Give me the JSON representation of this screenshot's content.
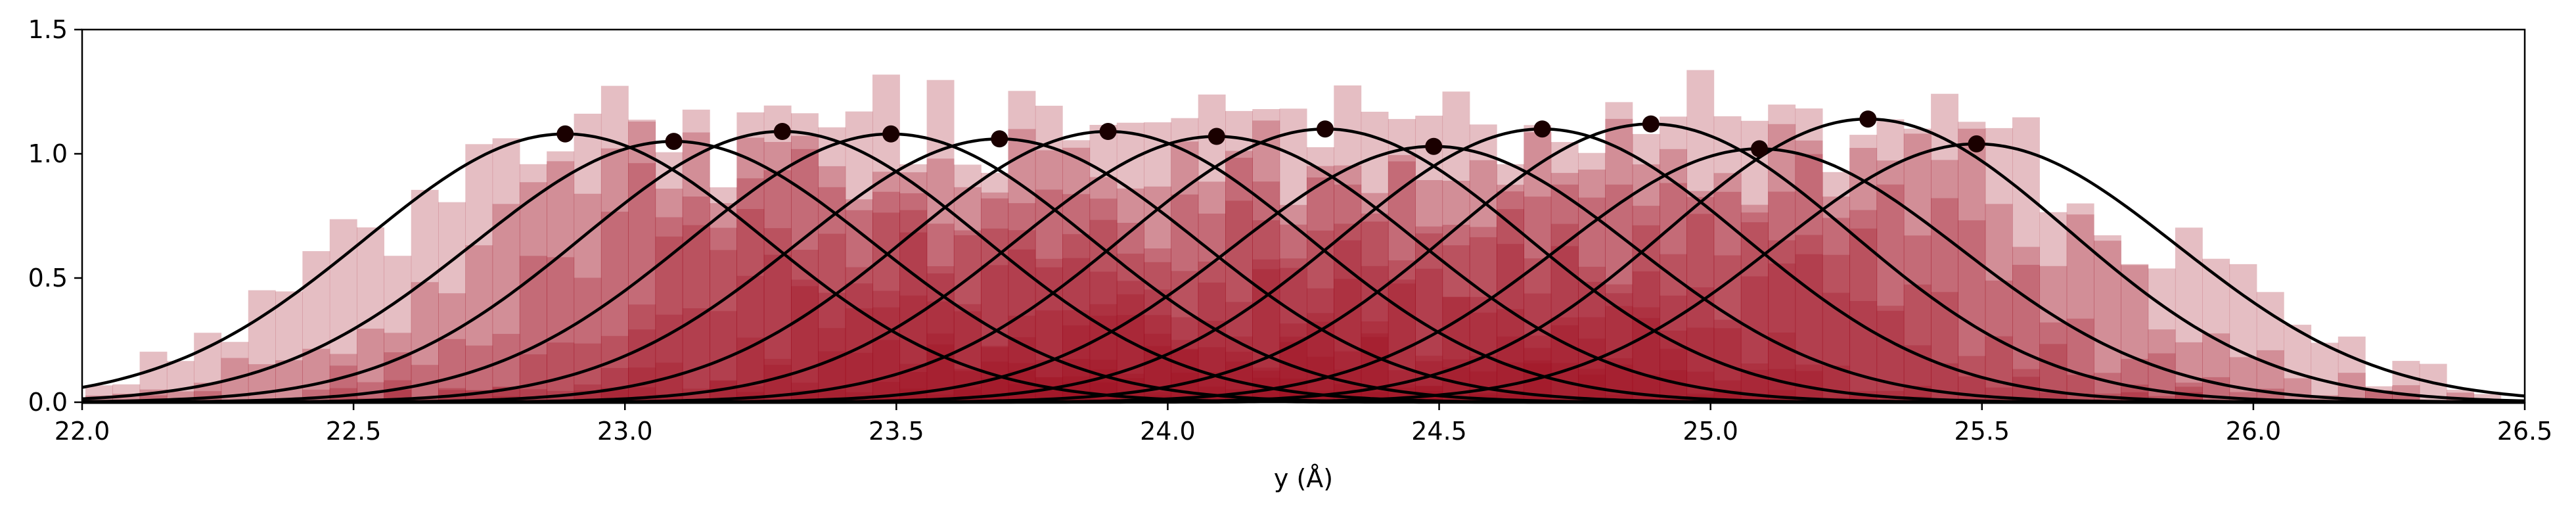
{
  "chart_data": {
    "type": "area",
    "xlabel": "y (Å)",
    "ylabel": "",
    "xlim": [
      22.0,
      26.5
    ],
    "ylim": [
      0.0,
      1.5
    ],
    "x_ticks": [
      "22.0",
      "22.5",
      "23.0",
      "23.5",
      "24.0",
      "24.5",
      "25.0",
      "25.5",
      "26.0",
      "26.5"
    ],
    "y_ticks": [
      "0.0",
      "0.5",
      "1.0",
      "1.5"
    ],
    "grid": false,
    "histogram_color": "#a01020",
    "curve_color": "#000000",
    "marker_color": "#1a0000",
    "bin_width": 0.05,
    "sigma": 0.37,
    "peaks": [
      {
        "mu": 22.89,
        "amplitude": 1.08
      },
      {
        "mu": 23.09,
        "amplitude": 1.05
      },
      {
        "mu": 23.29,
        "amplitude": 1.09
      },
      {
        "mu": 23.49,
        "amplitude": 1.08
      },
      {
        "mu": 23.69,
        "amplitude": 1.06
      },
      {
        "mu": 23.89,
        "amplitude": 1.09
      },
      {
        "mu": 24.09,
        "amplitude": 1.07
      },
      {
        "mu": 24.29,
        "amplitude": 1.1
      },
      {
        "mu": 24.49,
        "amplitude": 1.03
      },
      {
        "mu": 24.69,
        "amplitude": 1.1
      },
      {
        "mu": 24.89,
        "amplitude": 1.12
      },
      {
        "mu": 25.09,
        "amplitude": 1.02
      },
      {
        "mu": 25.29,
        "amplitude": 1.14
      },
      {
        "mu": 25.49,
        "amplitude": 1.04
      }
    ]
  }
}
